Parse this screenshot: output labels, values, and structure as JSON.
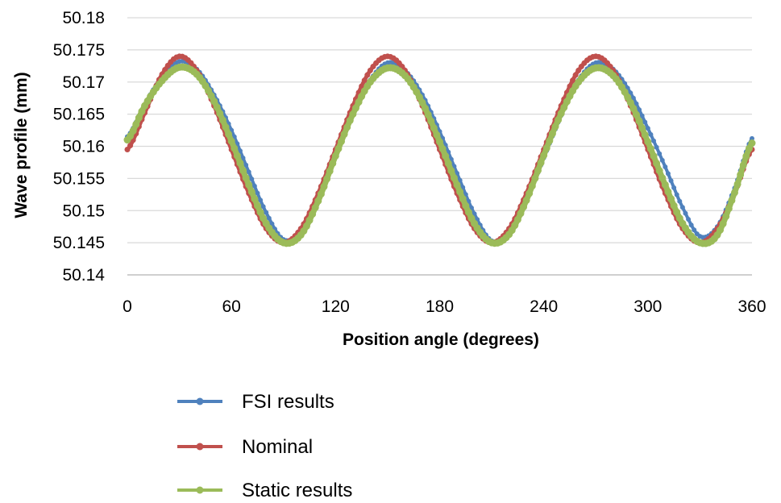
{
  "chart_data": {
    "type": "line",
    "title": "",
    "xlabel": "Position angle (degrees)",
    "ylabel": "Wave profile (mm)",
    "xlim": [
      0,
      360
    ],
    "ylim": [
      50.14,
      50.18
    ],
    "x_ticks": [
      0,
      60,
      120,
      180,
      240,
      300,
      360
    ],
    "x_tick_labels": [
      "0",
      "60",
      "120",
      "180",
      "240",
      "300",
      "360"
    ],
    "y_ticks": [
      50.14,
      50.145,
      50.15,
      50.155,
      50.16,
      50.165,
      50.17,
      50.175,
      50.18
    ],
    "y_tick_labels": [
      "50.14",
      "50.145",
      "50.15",
      "50.155",
      "50.16",
      "50.165",
      "50.17",
      "50.175",
      "50.18"
    ],
    "grid": "horizontal",
    "legend_position": "bottom",
    "x": [
      0,
      10,
      20,
      30,
      40,
      50,
      60,
      70,
      80,
      90,
      100,
      110,
      120,
      130,
      140,
      150,
      160,
      170,
      180,
      190,
      200,
      210,
      220,
      230,
      240,
      250,
      260,
      270,
      280,
      290,
      300,
      310,
      320,
      330,
      340,
      350,
      360
    ],
    "series": [
      {
        "name": "FSI results",
        "color": "#4f81bd",
        "values": [
          50.1615,
          50.1665,
          50.1708,
          50.1732,
          50.172,
          50.168,
          50.1625,
          50.156,
          50.1497,
          50.1455,
          50.1467,
          50.1518,
          50.1585,
          50.165,
          50.1703,
          50.173,
          50.1718,
          50.168,
          50.1623,
          50.1558,
          50.1495,
          50.1453,
          50.1465,
          50.1515,
          50.1582,
          50.1648,
          50.1703,
          50.173,
          50.172,
          50.1683,
          50.1628,
          50.1568,
          50.1505,
          50.146,
          50.1475,
          50.1535,
          50.1612
        ]
      },
      {
        "name": "Nominal",
        "color": "#c0504d",
        "values": [
          50.1595,
          50.1652,
          50.1712,
          50.174,
          50.1718,
          50.1663,
          50.1595,
          50.1527,
          50.1472,
          50.145,
          50.1472,
          50.1527,
          50.1595,
          50.1663,
          50.1718,
          50.174,
          50.1718,
          50.1663,
          50.1595,
          50.1527,
          50.1472,
          50.145,
          50.1472,
          50.1527,
          50.1595,
          50.1663,
          50.1718,
          50.174,
          50.1718,
          50.1663,
          50.1595,
          50.1527,
          50.1472,
          50.145,
          50.1472,
          50.1527,
          50.1595
        ]
      },
      {
        "name": "Static results",
        "color": "#9bbb59",
        "values": [
          50.161,
          50.1663,
          50.1702,
          50.1723,
          50.1712,
          50.167,
          50.1608,
          50.154,
          50.148,
          50.145,
          50.1462,
          50.1515,
          50.1585,
          50.165,
          50.17,
          50.1722,
          50.171,
          50.1668,
          50.1607,
          50.154,
          50.148,
          50.145,
          50.1463,
          50.1516,
          50.1586,
          50.1651,
          50.17,
          50.1722,
          50.171,
          50.1668,
          50.1607,
          50.154,
          50.148,
          50.145,
          50.1462,
          50.1528,
          50.1605
        ]
      }
    ]
  }
}
